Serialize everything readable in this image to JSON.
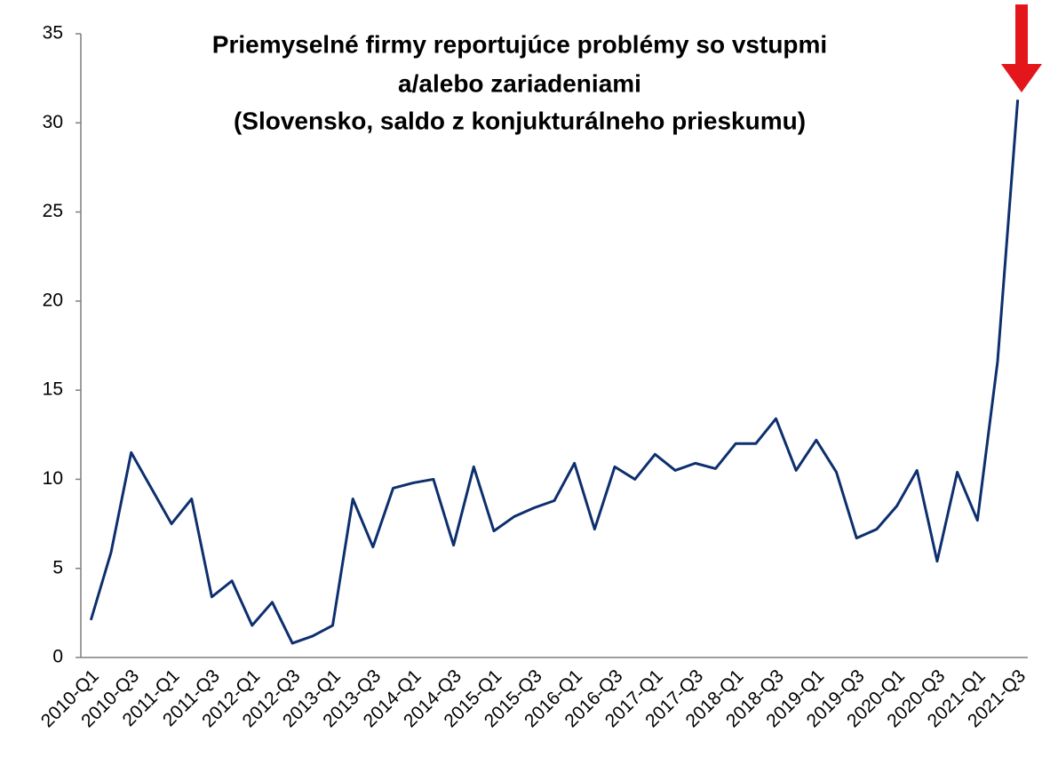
{
  "chart_data": {
    "type": "line",
    "title": [
      "Priemyselné firmy reportujúce problémy so vstupmi",
      "a/alebo zariadeniami",
      "(Slovensko, saldo z konjukturálneho prieskumu)"
    ],
    "categories": [
      "2010-Q1",
      null,
      "2010-Q3",
      null,
      "2011-Q1",
      null,
      "2011-Q3",
      null,
      "2012-Q1",
      null,
      "2012-Q3",
      null,
      "2013-Q1",
      null,
      "2013-Q3",
      null,
      "2014-Q1",
      null,
      "2014-Q3",
      null,
      "2015-Q1",
      null,
      "2015-Q3",
      null,
      "2016-Q1",
      null,
      "2016-Q3",
      null,
      "2017-Q1",
      null,
      "2017-Q3",
      null,
      "2018-Q1",
      null,
      "2018-Q3",
      null,
      "2019-Q1",
      null,
      "2019-Q3",
      null,
      "2020-Q1",
      null,
      "2020-Q3",
      null,
      "2021-Q1",
      null,
      "2021-Q3"
    ],
    "values": [
      2.1,
      5.9,
      11.5,
      9.5,
      7.5,
      8.9,
      3.4,
      4.3,
      1.8,
      3.1,
      0.8,
      1.2,
      1.8,
      8.9,
      6.2,
      9.5,
      9.8,
      10.0,
      6.3,
      10.7,
      7.1,
      7.9,
      8.4,
      8.8,
      10.9,
      7.2,
      10.7,
      10.0,
      11.4,
      10.5,
      10.9,
      10.6,
      12.0,
      12.0,
      13.4,
      10.5,
      12.2,
      10.4,
      6.7,
      7.2,
      8.5,
      10.5,
      5.4,
      10.4,
      7.7,
      16.6,
      31.3
    ],
    "color": "#0d2f6e",
    "ylim": [
      0,
      35
    ],
    "yticks": [
      0,
      5,
      10,
      15,
      20,
      25,
      30,
      35
    ],
    "grid": false
  }
}
